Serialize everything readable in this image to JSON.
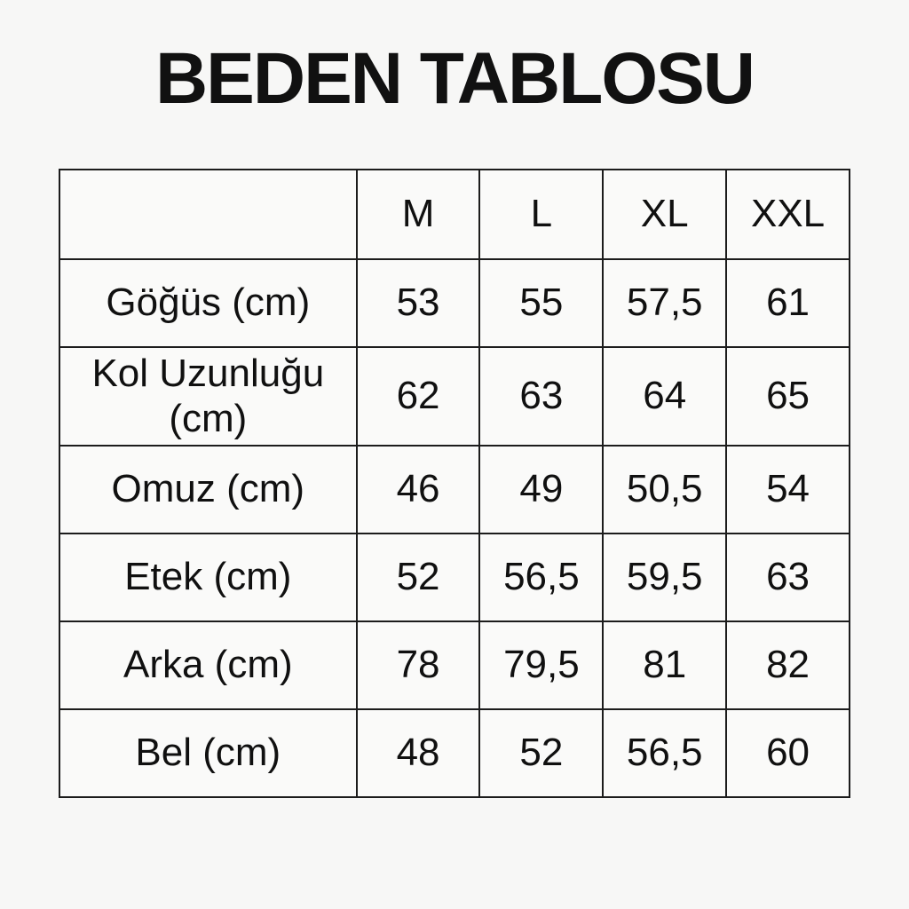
{
  "page": {
    "title": "BEDEN TABLOSU"
  },
  "chart_data": {
    "type": "table",
    "title": "BEDEN TABLOSU",
    "unit": "cm",
    "columns": [
      "",
      "M",
      "L",
      "XL",
      "XXL"
    ],
    "rows": [
      {
        "label": "Göğüs (cm)",
        "values": [
          "53",
          "55",
          "57,5",
          "61"
        ]
      },
      {
        "label": "Kol Uzunluğu (cm)",
        "values": [
          "62",
          "63",
          "64",
          "65"
        ]
      },
      {
        "label": "Omuz (cm)",
        "values": [
          "46",
          "49",
          "50,5",
          "54"
        ]
      },
      {
        "label": "Etek (cm)",
        "values": [
          "52",
          "56,5",
          "59,5",
          "63"
        ]
      },
      {
        "label": "Arka (cm)",
        "values": [
          "78",
          "79,5",
          "81",
          "82"
        ]
      },
      {
        "label": "Bel (cm)",
        "values": [
          "48",
          "52",
          "56,5",
          "60"
        ]
      }
    ],
    "layout": {
      "background": "#f7f7f6",
      "border_color": "#1c1c1c",
      "text_color": "#101010"
    }
  }
}
